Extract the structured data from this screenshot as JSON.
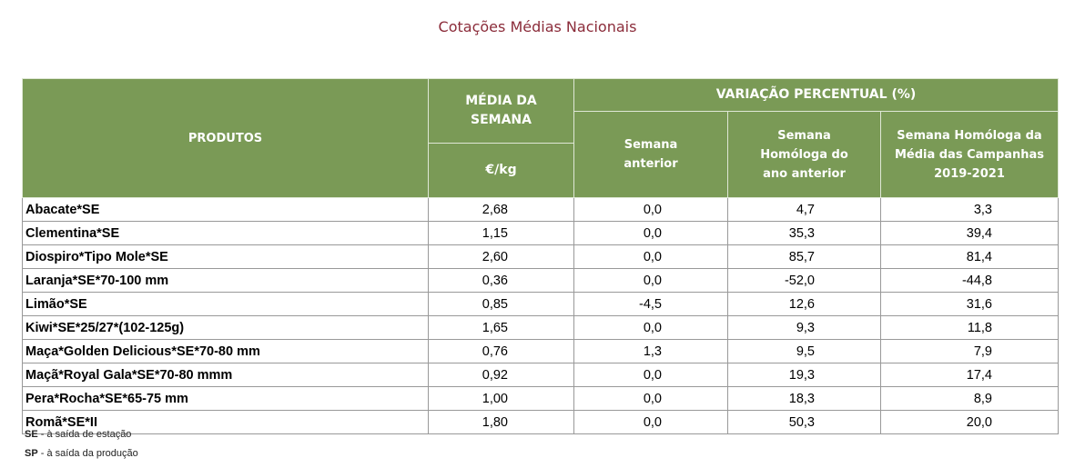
{
  "header": {
    "title": "Cotações Médias Nacionais"
  },
  "table": {
    "columns": {
      "product": "PRODUTOS",
      "average": "MÉDIA DA SEMANA",
      "unit": "€/kg",
      "variation": "VARIAÇÃO PERCENTUAL (%)",
      "previous_week": "Semana anterior",
      "homologous_week": "Semana Homóloga do ano anterior",
      "homologous_campaigns": "Semana Homóloga da Média das Campanhas 2019-2021"
    },
    "rows": [
      [
        "Abacate*SE",
        "2,68",
        "0,0",
        "4,7",
        "3,3"
      ],
      [
        "Clementina*SE",
        "1,15",
        "0,0",
        "35,3",
        "39,4"
      ],
      [
        "Diospiro*Tipo Mole*SE",
        "2,60",
        "0,0",
        "85,7",
        "81,4"
      ],
      [
        "Laranja*SE*70-100 mm",
        "0,36",
        "0,0",
        "-52,0",
        "-44,8"
      ],
      [
        "Limão*SE",
        "0,85",
        "-4,5",
        "12,6",
        "31,6"
      ],
      [
        "Kiwi*SE*25/27*(102-125g)",
        "1,65",
        "0,0",
        "9,3",
        "11,8"
      ],
      [
        "Maça*Golden Delicious*SE*70-80 mm",
        "0,76",
        "1,3",
        "9,5",
        "7,9"
      ],
      [
        "Maçã*Royal Gala*SE*70-80 mmm",
        "0,92",
        "0,0",
        "19,3",
        "17,4"
      ],
      [
        "Pera*Rocha*SE*65-75 mm",
        "1,00",
        "0,0",
        "18,3",
        "8,9"
      ],
      [
        "Romã*SE*II",
        "1,80",
        "0,0",
        "50,3",
        "20,0"
      ]
    ]
  },
  "footnotes": [
    {
      "code": "SE",
      "text": "- à saída de estação"
    },
    {
      "code": "SP",
      "text": "- à saída da produção"
    }
  ]
}
